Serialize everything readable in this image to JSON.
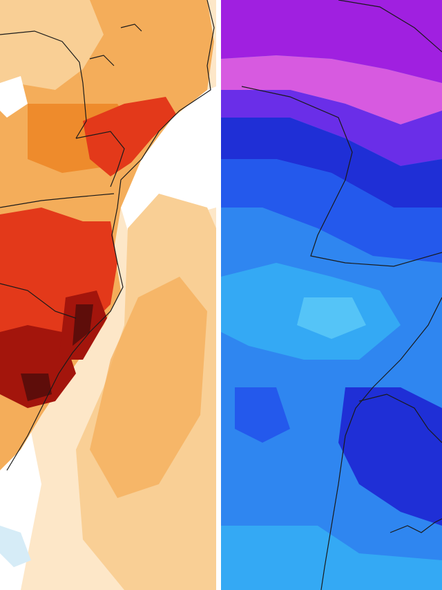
{
  "panels": [
    {
      "id": "left",
      "field": "warm-anomaly",
      "colors": {
        "ocean_low": "#ffffff",
        "pale": "#fde7c8",
        "light": "#f9cf95",
        "mid": "#f4ad5a",
        "orange": "#ee8b2c",
        "red": "#e3391a",
        "dark_red": "#a3150c",
        "max": "#5e0d0a",
        "cool_patch": "#d6ecf7"
      }
    },
    {
      "id": "right",
      "field": "cold-anomaly",
      "colors": {
        "magenta": "#a020e0",
        "pink": "#d75ae0",
        "violet": "#6a2ee8",
        "deep_blue": "#1f2fd6",
        "blue": "#2459ec",
        "mid_blue": "#2f86f0",
        "cyan": "#34a9f4",
        "light_cyan": "#55c4f7"
      }
    }
  ],
  "divider_color": "#ffffff",
  "boundary_color": "#1a1a1a"
}
